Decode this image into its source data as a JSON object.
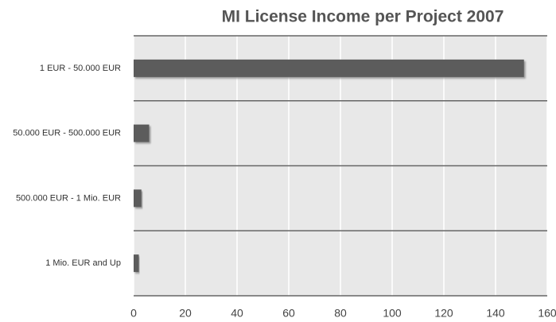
{
  "chart_data": {
    "type": "hbar",
    "title": "MI License Income per Project 2007",
    "categories": [
      "1 EUR - 50.000 EUR",
      "50.000 EUR - 500.000 EUR",
      "500.000 EUR - 1 Mio. EUR",
      "1 Mio. EUR and Up"
    ],
    "values": [
      151,
      6,
      3,
      2
    ],
    "color": "#5c5c5c",
    "xlim": [
      0,
      160
    ],
    "xticks": [
      0,
      20,
      40,
      60,
      80,
      100,
      120,
      140,
      160
    ],
    "grid": true
  }
}
